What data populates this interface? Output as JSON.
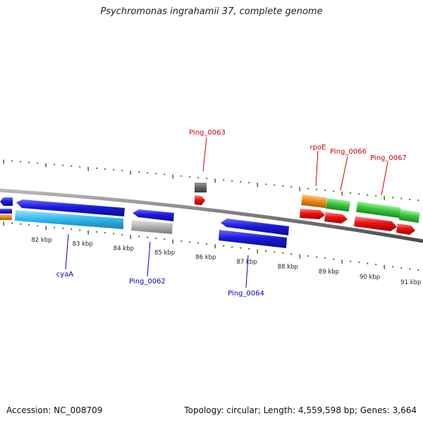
{
  "title": "Psychromonas ingrahamii 37, complete genome",
  "footer": {
    "accession": "Accession: NC_008709",
    "summary": "Topology: circular; Length: 4,559,598 bp; Genes: 3,664"
  },
  "colors": {
    "backbone": "#808080",
    "ticks": "#2a8a1e",
    "forward_label": "#cc0000",
    "reverse_label": "#0000bb",
    "blue": "#1a1adb",
    "cyan": "#33bbee",
    "gray": "#aaaaaa",
    "orange": "#f08c1e",
    "green": "#3cc83c",
    "red": "#ee1111"
  },
  "scale": {
    "unit": "kbp",
    "major_ticks": [
      "82 kbp",
      "83 kbp",
      "84 kbp",
      "85 kbp",
      "86 kbp",
      "87 kbp",
      "88 kbp",
      "89 kbp",
      "90 kbp",
      "91 kbp"
    ]
  },
  "gene_labels": [
    {
      "name": "Ping_0063",
      "strand": "forward"
    },
    {
      "name": "rpoE",
      "strand": "forward"
    },
    {
      "name": "Ping_0066",
      "strand": "forward"
    },
    {
      "name": "Ping_0067",
      "strand": "forward"
    },
    {
      "name": "cyaA",
      "strand": "reverse"
    },
    {
      "name": "Ping_0062",
      "strand": "reverse"
    },
    {
      "name": "Ping_0064",
      "strand": "reverse"
    }
  ]
}
